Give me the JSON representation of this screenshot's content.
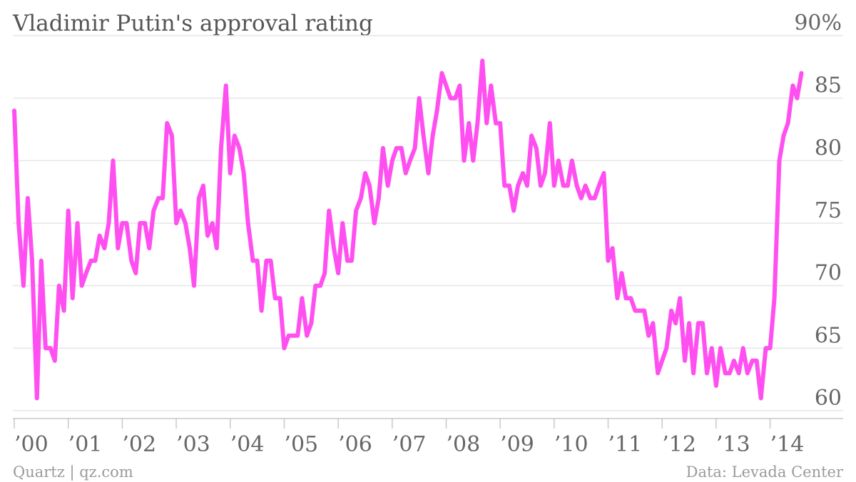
{
  "chart_data": {
    "type": "line",
    "title": "Vladimir Putin's approval rating",
    "xlabel": "",
    "ylabel": "",
    "x_ticks": [
      "’00",
      "’01",
      "’02",
      "’03",
      "’04",
      "’05",
      "’06",
      "’07",
      "’08",
      "’09",
      "’10",
      "’11",
      "’12",
      "’13",
      "’14"
    ],
    "y_ticks": [
      {
        "value": 90,
        "label": "90%"
      },
      {
        "value": 85,
        "label": "85"
      },
      {
        "value": 80,
        "label": "80"
      },
      {
        "value": 75,
        "label": "75"
      },
      {
        "value": 70,
        "label": "70"
      },
      {
        "value": 65,
        "label": "65"
      },
      {
        "value": 60,
        "label": "60"
      }
    ],
    "xlim": [
      2000.0,
      2014.6
    ],
    "ylim": [
      60,
      90
    ],
    "grid": "horizontal",
    "color": "#ff4ff0",
    "series": [
      {
        "name": "",
        "points": [
          [
            2000.0,
            84
          ],
          [
            2000.08,
            75
          ],
          [
            2000.17,
            70
          ],
          [
            2000.25,
            77
          ],
          [
            2000.33,
            72
          ],
          [
            2000.42,
            61
          ],
          [
            2000.5,
            72
          ],
          [
            2000.58,
            65
          ],
          [
            2000.67,
            65
          ],
          [
            2000.75,
            64
          ],
          [
            2000.83,
            70
          ],
          [
            2000.92,
            68
          ],
          [
            2001.0,
            76
          ],
          [
            2001.08,
            69
          ],
          [
            2001.17,
            75
          ],
          [
            2001.25,
            70
          ],
          [
            2001.33,
            71
          ],
          [
            2001.42,
            72
          ],
          [
            2001.5,
            72
          ],
          [
            2001.58,
            74
          ],
          [
            2001.67,
            73
          ],
          [
            2001.75,
            75
          ],
          [
            2001.83,
            80
          ],
          [
            2001.92,
            73
          ],
          [
            2002.0,
            75
          ],
          [
            2002.08,
            75
          ],
          [
            2002.17,
            72
          ],
          [
            2002.25,
            71
          ],
          [
            2002.33,
            75
          ],
          [
            2002.42,
            75
          ],
          [
            2002.5,
            73
          ],
          [
            2002.58,
            76
          ],
          [
            2002.67,
            77
          ],
          [
            2002.75,
            77
          ],
          [
            2002.83,
            83
          ],
          [
            2002.92,
            82
          ],
          [
            2003.0,
            75
          ],
          [
            2003.08,
            76
          ],
          [
            2003.17,
            75
          ],
          [
            2003.25,
            73
          ],
          [
            2003.33,
            70
          ],
          [
            2003.42,
            77
          ],
          [
            2003.5,
            78
          ],
          [
            2003.58,
            74
          ],
          [
            2003.67,
            75
          ],
          [
            2003.75,
            73
          ],
          [
            2003.83,
            81
          ],
          [
            2003.92,
            86
          ],
          [
            2004.0,
            79
          ],
          [
            2004.08,
            82
          ],
          [
            2004.17,
            81
          ],
          [
            2004.25,
            79
          ],
          [
            2004.33,
            75
          ],
          [
            2004.42,
            72
          ],
          [
            2004.5,
            72
          ],
          [
            2004.58,
            68
          ],
          [
            2004.67,
            72
          ],
          [
            2004.75,
            72
          ],
          [
            2004.83,
            69
          ],
          [
            2004.92,
            69
          ],
          [
            2005.0,
            65
          ],
          [
            2005.08,
            66
          ],
          [
            2005.17,
            66
          ],
          [
            2005.25,
            66
          ],
          [
            2005.33,
            69
          ],
          [
            2005.42,
            66
          ],
          [
            2005.5,
            67
          ],
          [
            2005.58,
            70
          ],
          [
            2005.67,
            70
          ],
          [
            2005.75,
            71
          ],
          [
            2005.83,
            76
          ],
          [
            2005.92,
            73
          ],
          [
            2006.0,
            71
          ],
          [
            2006.08,
            75
          ],
          [
            2006.17,
            72
          ],
          [
            2006.25,
            72
          ],
          [
            2006.33,
            76
          ],
          [
            2006.42,
            77
          ],
          [
            2006.5,
            79
          ],
          [
            2006.58,
            78
          ],
          [
            2006.67,
            75
          ],
          [
            2006.75,
            77
          ],
          [
            2006.83,
            81
          ],
          [
            2006.92,
            78
          ],
          [
            2007.0,
            80
          ],
          [
            2007.08,
            81
          ],
          [
            2007.17,
            81
          ],
          [
            2007.25,
            79
          ],
          [
            2007.33,
            80
          ],
          [
            2007.42,
            81
          ],
          [
            2007.5,
            85
          ],
          [
            2007.58,
            82
          ],
          [
            2007.67,
            79
          ],
          [
            2007.75,
            82
          ],
          [
            2007.83,
            84
          ],
          [
            2007.92,
            87
          ],
          [
            2008.0,
            86
          ],
          [
            2008.08,
            85
          ],
          [
            2008.17,
            85
          ],
          [
            2008.25,
            86
          ],
          [
            2008.33,
            80
          ],
          [
            2008.42,
            83
          ],
          [
            2008.5,
            80
          ],
          [
            2008.58,
            83
          ],
          [
            2008.67,
            88
          ],
          [
            2008.75,
            83
          ],
          [
            2008.83,
            86
          ],
          [
            2008.92,
            83
          ],
          [
            2009.0,
            83
          ],
          [
            2009.08,
            78
          ],
          [
            2009.17,
            78
          ],
          [
            2009.25,
            76
          ],
          [
            2009.33,
            78
          ],
          [
            2009.42,
            79
          ],
          [
            2009.5,
            78
          ],
          [
            2009.58,
            82
          ],
          [
            2009.67,
            81
          ],
          [
            2009.75,
            78
          ],
          [
            2009.83,
            79
          ],
          [
            2009.92,
            83
          ],
          [
            2010.0,
            78
          ],
          [
            2010.08,
            80
          ],
          [
            2010.17,
            78
          ],
          [
            2010.25,
            78
          ],
          [
            2010.33,
            80
          ],
          [
            2010.42,
            78
          ],
          [
            2010.5,
            77
          ],
          [
            2010.58,
            78
          ],
          [
            2010.67,
            77
          ],
          [
            2010.75,
            77
          ],
          [
            2010.83,
            78
          ],
          [
            2010.92,
            79
          ],
          [
            2011.0,
            72
          ],
          [
            2011.08,
            73
          ],
          [
            2011.17,
            69
          ],
          [
            2011.25,
            71
          ],
          [
            2011.33,
            69
          ],
          [
            2011.42,
            69
          ],
          [
            2011.5,
            68
          ],
          [
            2011.58,
            68
          ],
          [
            2011.67,
            68
          ],
          [
            2011.75,
            66
          ],
          [
            2011.83,
            67
          ],
          [
            2011.92,
            63
          ],
          [
            2012.0,
            64
          ],
          [
            2012.08,
            65
          ],
          [
            2012.17,
            68
          ],
          [
            2012.25,
            67
          ],
          [
            2012.33,
            69
          ],
          [
            2012.42,
            64
          ],
          [
            2012.5,
            67
          ],
          [
            2012.58,
            63
          ],
          [
            2012.67,
            67
          ],
          [
            2012.75,
            67
          ],
          [
            2012.83,
            63
          ],
          [
            2012.92,
            65
          ],
          [
            2013.0,
            62
          ],
          [
            2013.08,
            65
          ],
          [
            2013.17,
            63
          ],
          [
            2013.25,
            63
          ],
          [
            2013.33,
            64
          ],
          [
            2013.42,
            63
          ],
          [
            2013.5,
            65
          ],
          [
            2013.58,
            63
          ],
          [
            2013.67,
            64
          ],
          [
            2013.75,
            64
          ],
          [
            2013.83,
            61
          ],
          [
            2013.92,
            65
          ],
          [
            2014.0,
            65
          ],
          [
            2014.08,
            69
          ],
          [
            2014.17,
            80
          ],
          [
            2014.25,
            82
          ],
          [
            2014.33,
            83
          ],
          [
            2014.42,
            86
          ],
          [
            2014.5,
            85
          ],
          [
            2014.58,
            87
          ]
        ]
      }
    ]
  },
  "footer": {
    "source_left": "Quartz | qz.com",
    "source_right": "Data: Levada Center"
  }
}
